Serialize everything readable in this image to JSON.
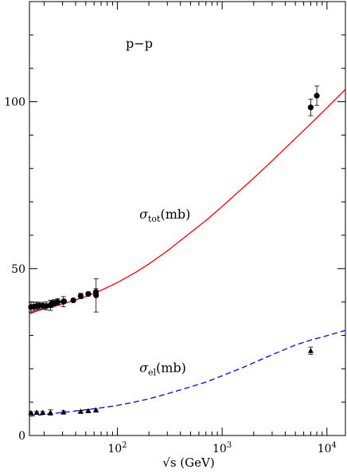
{
  "chart_data": {
    "type": "scatter",
    "title": "p−p",
    "xlabel": "√s (GeV)",
    "ylabel": "",
    "xscale": "log",
    "xlim": [
      14.5,
      15000
    ],
    "ylim": [
      0,
      130
    ],
    "x_ticks": [
      {
        "value": 100,
        "base": "10",
        "exp": "2"
      },
      {
        "value": 1000,
        "base": "10",
        "exp": "3"
      },
      {
        "value": 10000,
        "base": "10",
        "exp": "4"
      }
    ],
    "y_ticks": [
      {
        "value": 0,
        "label": "0"
      },
      {
        "value": 50,
        "label": "50"
      },
      {
        "value": 100,
        "label": "100"
      }
    ],
    "grid": false,
    "annotations": [
      {
        "base": "σ",
        "sub": "tot",
        "suffix": "(mb)",
        "x": 230,
        "y": 65
      },
      {
        "base": "σ",
        "sub": "el",
        "suffix": "(mb)",
        "x": 230,
        "y": 19
      }
    ],
    "series": [
      {
        "marker": "circle",
        "color": "#000000",
        "points": [
          {
            "x": 15,
            "y": 38.5,
            "err": 1.5
          },
          {
            "x": 16,
            "y": 38.6,
            "err": 1.3
          },
          {
            "x": 17,
            "y": 38.8,
            "err": 1.2
          },
          {
            "x": 18,
            "y": 38.9,
            "err": 1.0
          },
          {
            "x": 19.4,
            "y": 38.9,
            "err": 1.0
          },
          {
            "x": 21,
            "y": 38.8,
            "err": 1.2
          },
          {
            "x": 23,
            "y": 39.0,
            "err": 1.5
          },
          {
            "x": 23.5,
            "y": 39.4,
            "err": 1.0
          },
          {
            "x": 25,
            "y": 39.7,
            "err": 1.0
          },
          {
            "x": 27,
            "y": 40.0,
            "err": 1.0
          },
          {
            "x": 30.6,
            "y": 40.1,
            "err": 1.5
          },
          {
            "x": 31,
            "y": 40.2,
            "err": 0.5
          },
          {
            "x": 38,
            "y": 40.5,
            "err": 0.5
          },
          {
            "x": 44.7,
            "y": 41.8,
            "err": 0.8
          },
          {
            "x": 52.8,
            "y": 42.4,
            "err": 0.6
          },
          {
            "x": 62.5,
            "y": 43.0,
            "err": 1.0
          },
          {
            "x": 62.7,
            "y": 42.0,
            "err": 5.0
          },
          {
            "x": 7000,
            "y": 98.3,
            "err": 2.5
          },
          {
            "x": 8000,
            "y": 101.8,
            "err": 2.9
          }
        ]
      },
      {
        "marker": "triangle",
        "color": "#000000",
        "points": [
          {
            "x": 15,
            "y": 6.8,
            "err": 0.3
          },
          {
            "x": 17,
            "y": 6.9,
            "err": 0.3
          },
          {
            "x": 19.4,
            "y": 6.9,
            "err": 0.3
          },
          {
            "x": 23,
            "y": 6.9,
            "err": 0.8
          },
          {
            "x": 30.6,
            "y": 7.0,
            "err": 0.4
          },
          {
            "x": 44.7,
            "y": 7.2,
            "err": 0.3
          },
          {
            "x": 52.8,
            "y": 7.4,
            "err": 0.3
          },
          {
            "x": 62.5,
            "y": 7.6,
            "err": 0.3
          },
          {
            "x": 7000,
            "y": 25.4,
            "err": 1.1
          }
        ]
      },
      {
        "marker": "line",
        "color": "#ff0000",
        "dash": "solid",
        "x": [
          14.5,
          20,
          30,
          50,
          70,
          100,
          150,
          200,
          300,
          500,
          700,
          1000,
          1500,
          2000,
          3000,
          5000,
          7000,
          10000,
          15000
        ],
        "y": [
          36.5,
          38.0,
          39.4,
          41.6,
          43.5,
          45.8,
          48.9,
          51.4,
          55.3,
          60.8,
          64.4,
          68.6,
          73.6,
          77.1,
          82.3,
          89.0,
          93.4,
          98.2,
          103.7
        ]
      },
      {
        "marker": "line",
        "color": "#0000ff",
        "dash": "dashed",
        "x": [
          14.5,
          20,
          30,
          50,
          70,
          100,
          150,
          200,
          300,
          500,
          700,
          1000,
          1500,
          2000,
          3000,
          5000,
          7000,
          10000,
          15000
        ],
        "y": [
          5.8,
          6.3,
          6.9,
          7.7,
          8.3,
          9.0,
          10.1,
          11.0,
          12.5,
          14.6,
          16.0,
          17.9,
          20.1,
          21.8,
          24.2,
          27.1,
          28.6,
          29.9,
          31.5
        ]
      }
    ]
  }
}
